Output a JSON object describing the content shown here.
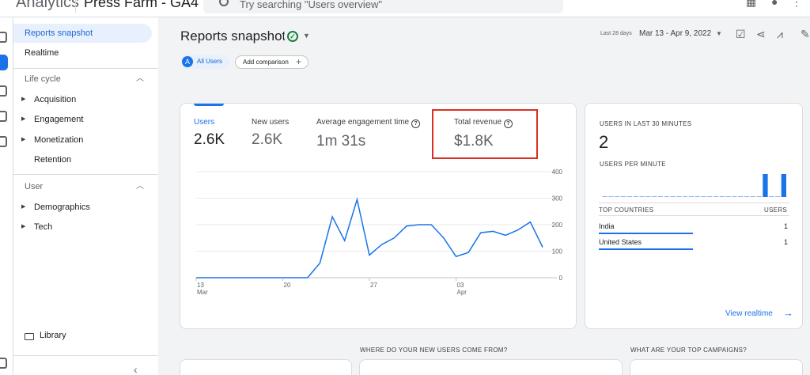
{
  "header": {
    "app_name": "Analytics",
    "property_name": "Press Farm - GA4",
    "search_placeholder": "Try searching \"Users overview\""
  },
  "sidebar": {
    "items": [
      {
        "label": "Reports snapshot"
      },
      {
        "label": "Realtime"
      }
    ],
    "sections": [
      {
        "label": "Life cycle",
        "items": [
          "Acquisition",
          "Engagement",
          "Monetization",
          "Retention"
        ]
      },
      {
        "label": "User",
        "items": [
          "Demographics",
          "Tech"
        ]
      }
    ],
    "library_label": "Library"
  },
  "page": {
    "title": "Reports snapshot",
    "date_prefix": "Last 28 days",
    "date_range": "Mar 13 - Apr 9, 2022",
    "comparison_chip": "All Users",
    "comparison_badge": "A",
    "add_comparison": "Add comparison"
  },
  "metrics": [
    {
      "label": "Users",
      "value": "2.6K",
      "active": true
    },
    {
      "label": "New users",
      "value": "2.6K",
      "active": false
    },
    {
      "label": "Average engagement time",
      "value": "1m 31s",
      "active": false,
      "help": true
    },
    {
      "label": "Total revenue",
      "value": "$1.8K",
      "active": false,
      "help": true,
      "highlighted": true
    }
  ],
  "chart_data": {
    "type": "line",
    "x_ticks": [
      {
        "day": "13",
        "month": "Mar"
      },
      {
        "day": "20",
        "month": ""
      },
      {
        "day": "27",
        "month": ""
      },
      {
        "day": "03",
        "month": "Apr"
      }
    ],
    "y_ticks": [
      "400",
      "300",
      "200",
      "100",
      "0"
    ],
    "ylim": [
      0,
      400
    ],
    "series": [
      {
        "color": "#1a73e8",
        "values": [
          0,
          0,
          0,
          0,
          0,
          0,
          0,
          0,
          0,
          0,
          55,
          230,
          140,
          295,
          85,
          125,
          150,
          195,
          200,
          200,
          150,
          80,
          95,
          170,
          175,
          160,
          180,
          210,
          115
        ]
      }
    ]
  },
  "realtime": {
    "title": "USERS IN LAST 30 MINUTES",
    "count": "2",
    "per_minute_label": "USERS PER MINUTE",
    "per_minute": [
      0,
      0,
      0,
      0,
      0,
      0,
      0,
      0,
      0,
      0,
      0,
      0,
      0,
      0,
      0,
      0,
      0,
      0,
      0,
      0,
      0,
      0,
      0,
      0,
      0,
      0,
      1,
      0,
      0,
      1
    ],
    "countries_header": "TOP COUNTRIES",
    "users_header": "USERS",
    "countries": [
      {
        "name": "India",
        "users": "1"
      },
      {
        "name": "United States",
        "users": "1"
      }
    ],
    "view_link": "View realtime"
  },
  "sections": {
    "new_users_question": "WHERE DO YOUR NEW USERS COME FROM?",
    "campaigns_question": "WHAT ARE YOUR TOP CAMPAIGNS?"
  },
  "colors": {
    "accent": "#1a73e8",
    "highlight_border": "#d93025"
  }
}
